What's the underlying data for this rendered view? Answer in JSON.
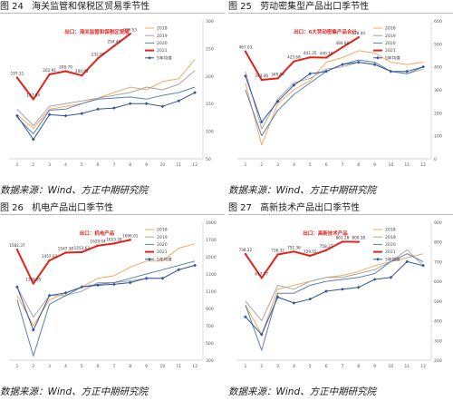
{
  "chart_data": [
    {
      "type": "line",
      "figure_label": "图 24",
      "title": "海关监管和保税区贸易季节性",
      "source": "数据来源：Wind、方正中期研究院",
      "annotation": "出口：海关监管和保税区贸易",
      "x": [
        1,
        2,
        3,
        4,
        5,
        6,
        7,
        8,
        9,
        10,
        11,
        12
      ],
      "ylim": [
        50,
        300
      ],
      "yticks": [
        50,
        100,
        150,
        200,
        250,
        300
      ],
      "series": [
        {
          "name": "2018",
          "color": "#f0a95f",
          "width": 1,
          "values": [
            130,
            105,
            140,
            145,
            150,
            160,
            170,
            180,
            175,
            190,
            195,
            230
          ]
        },
        {
          "name": "2019",
          "color": "#a6a6a6",
          "width": 1,
          "values": [
            140,
            110,
            145,
            150,
            155,
            160,
            165,
            170,
            180,
            175,
            185,
            210
          ]
        },
        {
          "name": "2020",
          "color": "#5b7fb0",
          "width": 1,
          "values": [
            125,
            95,
            138,
            140,
            150,
            158,
            160,
            162,
            158,
            165,
            170,
            180
          ]
        },
        {
          "name": "2021",
          "color": "#e3231b",
          "width": 2,
          "point_labels": true,
          "values": [
            197.11,
            157.84,
            202.91,
            208.79,
            200.93,
            232.07,
            254.46,
            276.53,
            null,
            null,
            null,
            null
          ]
        },
        {
          "name": "5年均值",
          "color": "#2f5597",
          "width": 1,
          "markers": true,
          "values": [
            128,
            85,
            130,
            128,
            132,
            140,
            142,
            150,
            150,
            145,
            155,
            170
          ]
        }
      ]
    },
    {
      "type": "line",
      "figure_label": "图 25",
      "title": "劳动密集型产品出口季节性",
      "source": "数据来源：Wind、方正中期研究院",
      "annotation": "出口：6大劳动密集产品合计",
      "x": [
        1,
        2,
        3,
        4,
        5,
        6,
        7,
        8,
        9,
        10,
        11,
        12
      ],
      "ylim": [
        0,
        600
      ],
      "yticks": [
        0,
        100,
        200,
        300,
        400,
        500,
        600
      ],
      "series": [
        {
          "name": "2018",
          "color": "#f0a95f",
          "width": 1,
          "values": [
            330,
            60,
            240,
            300,
            340,
            420,
            440,
            470,
            460,
            420,
            410,
            420
          ]
        },
        {
          "name": "2019",
          "color": "#a6a6a6",
          "width": 1,
          "values": [
            380,
            130,
            260,
            330,
            350,
            390,
            400,
            420,
            410,
            380,
            370,
            390
          ]
        },
        {
          "name": "2020",
          "color": "#5b7fb0",
          "width": 1,
          "values": [
            300,
            100,
            210,
            280,
            330,
            380,
            410,
            430,
            420,
            380,
            370,
            400
          ]
        },
        {
          "name": "2021",
          "color": "#e3231b",
          "width": 2,
          "point_labels": true,
          "values": [
            467.03,
            343.46,
            349.54,
            423.68,
            441.25,
            440.18,
            484.88,
            528.44,
            null,
            null,
            null,
            null
          ]
        },
        {
          "name": "5年均值",
          "color": "#2f5597",
          "width": 1,
          "markers": true,
          "values": [
            360,
            160,
            250,
            320,
            370,
            380,
            410,
            420,
            410,
            380,
            380,
            400
          ]
        }
      ]
    },
    {
      "type": "line",
      "figure_label": "图 26",
      "title": "机电产品出口季节性",
      "source": "数据来源：Wind、方正中期研究院",
      "annotation": "出口：机电产品",
      "x": [
        1,
        2,
        3,
        4,
        5,
        6,
        7,
        8,
        9,
        10,
        11,
        12
      ],
      "ylim": [
        300,
        1900
      ],
      "yticks": [
        300,
        500,
        700,
        900,
        1100,
        1300,
        1500,
        1700,
        1900
      ],
      "series": [
        {
          "name": "2018",
          "color": "#f0a95f",
          "width": 1,
          "values": [
            1050,
            700,
            1000,
            1080,
            1150,
            1250,
            1280,
            1380,
            1450,
            1450,
            1600,
            1650
          ]
        },
        {
          "name": "2019",
          "color": "#a6a6a6",
          "width": 1,
          "values": [
            1150,
            800,
            1050,
            1050,
            1100,
            1200,
            1200,
            1220,
            1250,
            1250,
            1350,
            1400
          ]
        },
        {
          "name": "2020",
          "color": "#5b7fb0",
          "width": 1,
          "values": [
            1000,
            350,
            950,
            1050,
            1150,
            1180,
            1200,
            1250,
            1300,
            1350,
            1400,
            1450
          ]
        },
        {
          "name": "2021",
          "color": "#e3231b",
          "width": 2,
          "point_labels": true,
          "values": [
            1582.37,
            1188.85,
            1457.03,
            1547.38,
            1553.62,
            1629.04,
            1653.28,
            1696.01,
            null,
            null,
            null,
            null
          ]
        },
        {
          "name": "5年均值",
          "color": "#2f5597",
          "width": 1,
          "markers": true,
          "values": [
            1150,
            650,
            1050,
            1080,
            1150,
            1170,
            1180,
            1200,
            1250,
            1250,
            1350,
            1400
          ]
        }
      ]
    },
    {
      "type": "line",
      "figure_label": "图 27",
      "title": "高新技术产品出口季节性",
      "source": "数据来源：Wind、方正中期研究院",
      "annotation": "出口：高新技术产品",
      "x": [
        1,
        2,
        3,
        4,
        5,
        6,
        7,
        8,
        9,
        10,
        11,
        12
      ],
      "ylim": [
        200,
        900
      ],
      "yticks": [
        200,
        300,
        400,
        500,
        600,
        700,
        800,
        900
      ],
      "series": [
        {
          "name": "2018",
          "color": "#f0a95f",
          "width": 1,
          "values": [
            480,
            330,
            560,
            580,
            600,
            620,
            630,
            650,
            680,
            700,
            720,
            740
          ]
        },
        {
          "name": "2019",
          "color": "#a6a6a6",
          "width": 1,
          "values": [
            500,
            400,
            580,
            560,
            600,
            620,
            620,
            640,
            660,
            700,
            760,
            680
          ]
        },
        {
          "name": "2020",
          "color": "#5b7fb0",
          "width": 1,
          "values": [
            480,
            250,
            540,
            540,
            580,
            600,
            610,
            620,
            640,
            700,
            740,
            700
          ]
        },
        {
          "name": "2021",
          "color": "#e3231b",
          "width": 2,
          "point_labels": true,
          "values": [
            738.22,
            617.77,
            736.32,
            751.36,
            729.55,
            758.27,
            801.28,
            800.38,
            null,
            null,
            null,
            null
          ]
        },
        {
          "name": "5年均值",
          "color": "#2f5597",
          "width": 1,
          "markers": true,
          "values": [
            420,
            330,
            520,
            490,
            510,
            550,
            560,
            570,
            610,
            620,
            700,
            680
          ]
        }
      ]
    }
  ]
}
